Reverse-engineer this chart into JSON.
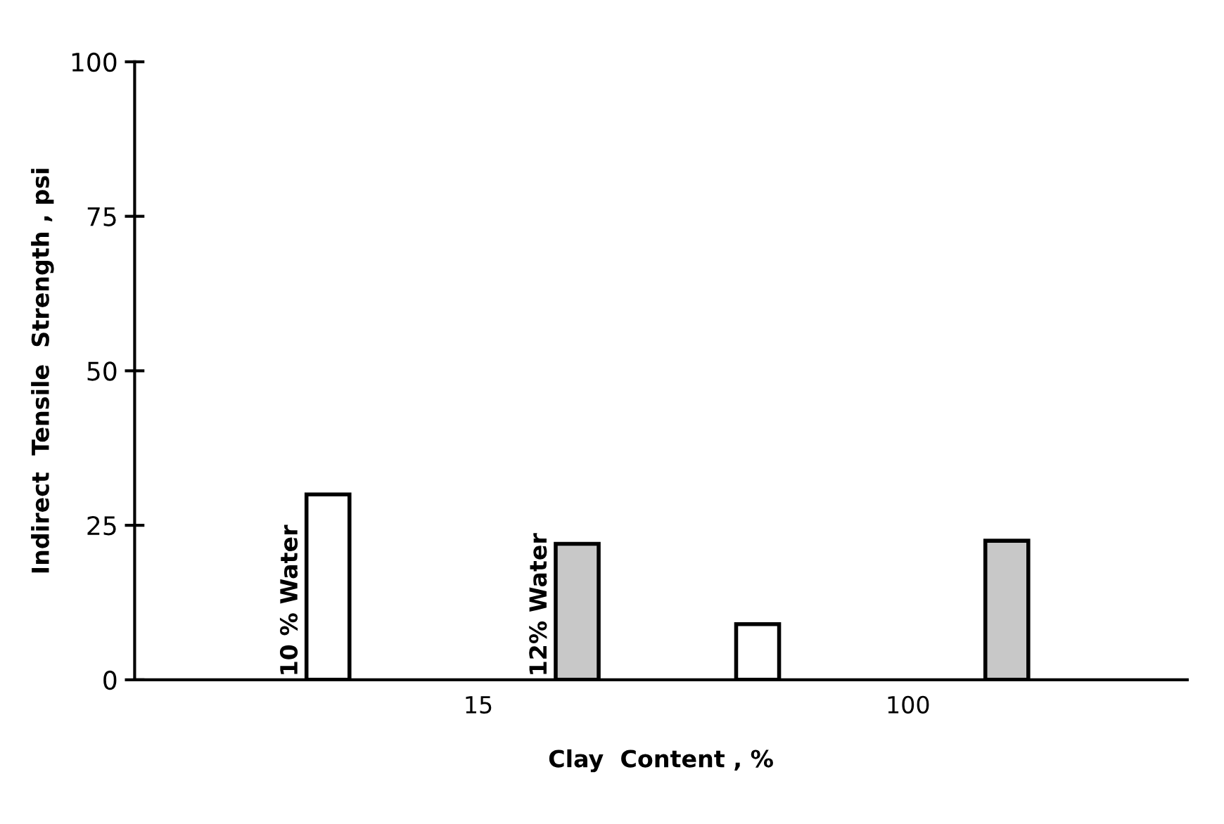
{
  "chart_data": {
    "type": "bar",
    "xlabel": "Clay  Content , %",
    "ylabel": "Indirect  Tensile  Strength , psi",
    "categories": [
      "15",
      "100"
    ],
    "series": [
      {
        "name": "10 % Water",
        "color": "#ffffff",
        "values": [
          30,
          9
        ]
      },
      {
        "name": "12% Water",
        "color": "#c8c8c8",
        "values": [
          22,
          22.5
        ]
      }
    ],
    "ylim": [
      0,
      100
    ],
    "yticks": [
      0,
      25,
      50,
      75,
      100
    ],
    "grid": false,
    "legend": false
  }
}
